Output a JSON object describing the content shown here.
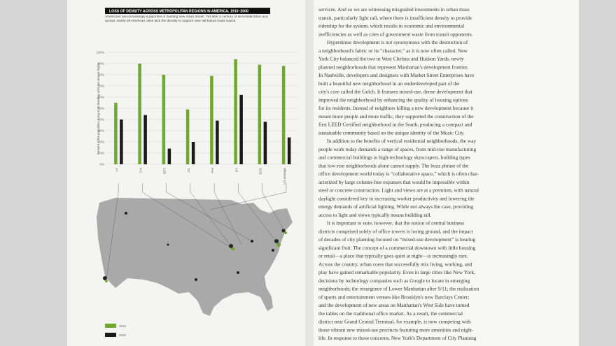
{
  "chart_data": {
    "type": "bar",
    "title": "LOSS OF DENSITY ACROSS METROPOLITAN REGIONS IN AMERICA, 1910–2000",
    "subtitle": "Americans are increasingly supportive of building new mass transit. Yet after a century of decentralization and sprawl, nearly all American cities lack the density to support new rail-based mass transit.",
    "y_label": "Percent of the population living at 30 dwelling units per acre or higher",
    "categories": [
      "LA",
      "CHI",
      "DET",
      "DC",
      "PHI",
      "NY",
      "BOS",
      "US average"
    ],
    "series": [
      {
        "name": "1910",
        "color": "#6fa82e",
        "values": [
          55,
          90,
          80,
          49,
          79,
          94,
          89,
          88
        ]
      },
      {
        "name": "2000",
        "color": "#1a1a1a",
        "values": [
          40,
          44,
          14,
          20,
          39,
          62,
          38,
          24
        ]
      }
    ],
    "ylim": [
      0,
      100
    ],
    "yticks": [
      {
        "value": 0,
        "label": "0%"
      },
      {
        "value": 10,
        "label": "10%"
      },
      {
        "value": 20,
        "label": "20%"
      },
      {
        "value": 30,
        "label": "30%"
      },
      {
        "value": 40,
        "label": "40%"
      },
      {
        "value": 50,
        "label": "50%"
      },
      {
        "value": 60,
        "label": "60%"
      },
      {
        "value": 70,
        "label": "70%"
      },
      {
        "value": 80,
        "label": "80%"
      },
      {
        "value": 90,
        "label": "90%"
      },
      {
        "value": 100,
        "label": "100%"
      }
    ],
    "grid": true
  },
  "right_page": {
    "paragraphs": [
      [
        "services. And so we are witnessing misguided investments in urban mass",
        "transit, particularly light rail, where there is insufficient density to provide",
        "ridership for the system, which results in economic and environmental",
        "inefficiencies as well as cries of government waste from transit opponents."
      ],
      [
        "Hyperdense development is not synonymous with the destruction of",
        "a neighborhood's fabric or its “character,” as it is now often called. New",
        "York City balanced the two in West Chelsea and Hudson Yards, newly",
        "planned neighborhoods that represent Manhattan's development frontier.",
        "In Nashville, developers and designers with Market Street Enterprises have",
        "built a beautiful new neighborhood in an underdeveloped part of the",
        "city's core called the Gulch. It features mixed-use, dense development that",
        "improved the neighborhood by enhancing the quality of housing options",
        "for its residents. Instead of neighbors killing a new development because it",
        "meant more people and more traffic, they supported the construction of the",
        "first LEED Certified neighborhood in the South, producing a compact and",
        "sustainable community based on the unique identity of the Music City."
      ],
      [
        "In addition to the benefits of vertical residential neighborhoods, the way",
        "people work today demands a range of spaces, from mid-rise manufacturing",
        "and commercial buildings to high-technology skyscrapers, building types",
        "that low-rise neighborhoods alone cannot supply. The buzz phrase of the",
        "office development world today is “collaborative space,” which is often char-",
        "acterized by large column-free expanses that would be impossible within",
        "steel or concrete construction. Light and views are at a premium, with natural",
        "daylight considered key to increasing worker productivity and lowering the",
        "energy demands of artificial lighting. While not always the case, providing",
        "access to light and views typically means building tall."
      ],
      [
        "It is important to note, however, that the notion of central business",
        "districts comprised solely of office towers is losing ground, and the impact",
        "of decades of city planning focused on “mixed-use development” is bearing",
        "significant fruit. The concept of a commercial downtown with little housing",
        "or retail—a place that typically goes quiet at night—is increasingly rare.",
        "Across the country, urban cores that successfully mix living, working, and",
        "play have gained remarkable popularity. Even in large cities like New York,",
        "decisions by technology companies such as Google to locate in emerging",
        "neighborhoods; the resurgence of Lower Manhattan after 9/11; the realization",
        "of sports and entertainment venues like Brooklyn's new Barclays Center;",
        "and the development of new areas on Manhattan's West Side have turned",
        "the tables on the traditional office market. As a result, the commercial",
        "district near Grand Central Terminal, for example, is now competing with",
        "those vibrant new mixed-use precincts featuring more amenities and night-",
        "life. In response to these concerns, New York's Department of City Planning"
      ]
    ]
  }
}
